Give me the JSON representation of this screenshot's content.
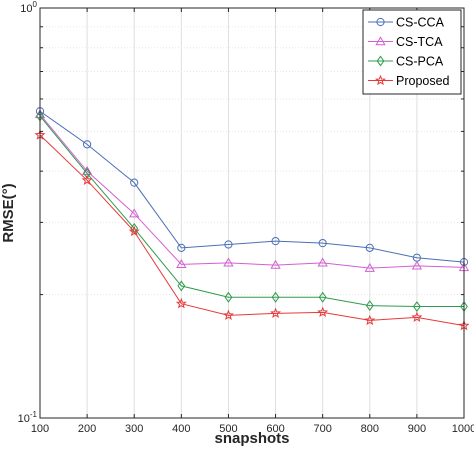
{
  "chart_data": {
    "type": "line",
    "title": "",
    "xlabel": "snapshots",
    "ylabel": "RMSE(°)",
    "x": [
      100,
      200,
      300,
      400,
      500,
      600,
      700,
      800,
      900,
      1000
    ],
    "x_tick_labels": [
      "100",
      "200",
      "300",
      "400",
      "500",
      "600",
      "700",
      "800",
      "900",
      "1000"
    ],
    "xlim": [
      100,
      1000
    ],
    "y_scale": "log",
    "ylim": [
      0.1,
      1
    ],
    "y_ticks": [
      {
        "value": 1,
        "base": "10",
        "exp": "0"
      },
      {
        "value": 0.1,
        "base": "10",
        "exp": "-1"
      }
    ],
    "grid": true,
    "legend_position": "top-right",
    "series": [
      {
        "name": "CS-CCA",
        "color": "#4a6fb5",
        "marker": "circle",
        "values": [
          0.56,
          0.465,
          0.375,
          0.26,
          0.265,
          0.27,
          0.267,
          0.26,
          0.246,
          0.24
        ]
      },
      {
        "name": "CS-TCA",
        "color": "#d35fd3",
        "marker": "triangle",
        "values": [
          0.55,
          0.4,
          0.315,
          0.237,
          0.239,
          0.236,
          0.239,
          0.232,
          0.235,
          0.233
        ]
      },
      {
        "name": "CS-PCA",
        "color": "#2e9b4c",
        "marker": "diamond",
        "values": [
          0.545,
          0.395,
          0.29,
          0.21,
          0.197,
          0.197,
          0.197,
          0.188,
          0.187,
          0.187
        ]
      },
      {
        "name": "Proposed",
        "color": "#e8393a",
        "marker": "star",
        "values": [
          0.49,
          0.38,
          0.285,
          0.19,
          0.178,
          0.18,
          0.181,
          0.173,
          0.176,
          0.168
        ]
      }
    ]
  }
}
